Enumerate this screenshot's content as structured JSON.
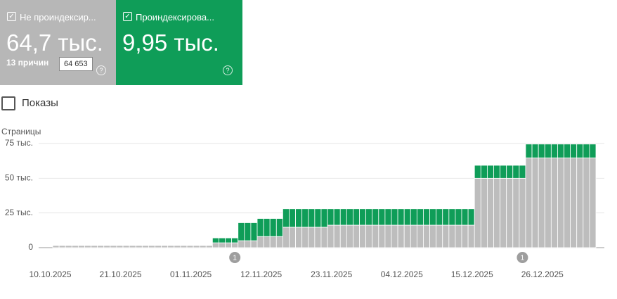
{
  "cards": [
    {
      "label": "Не проиндексир...",
      "value": "64,7 тыс.",
      "sub": "13 причин",
      "tooltip": "64 653"
    },
    {
      "label": "Проиндексирова...",
      "value": "9,95 тыс."
    }
  ],
  "checkbox_label": "Показы",
  "chart_data": {
    "type": "bar",
    "stacked": true,
    "y_label": "Страницы",
    "grid": true,
    "categories": [
      "10.10.2025",
      null,
      null,
      null,
      null,
      null,
      null,
      null,
      null,
      null,
      null,
      "21.10.2025",
      null,
      null,
      null,
      null,
      null,
      null,
      null,
      null,
      null,
      null,
      "01.11.2025",
      null,
      null,
      null,
      null,
      null,
      null,
      null,
      null,
      null,
      null,
      "12.11.2025",
      null,
      null,
      null,
      null,
      null,
      null,
      null,
      null,
      null,
      null,
      "23.11.2025",
      null,
      null,
      null,
      null,
      null,
      null,
      null,
      null,
      null,
      null,
      "04.12.2025",
      null,
      null,
      null,
      null,
      null,
      null,
      null,
      null,
      null,
      null,
      "15.12.2025",
      null,
      null,
      null,
      null,
      null,
      null,
      null,
      null,
      null,
      null,
      "26.12.2025",
      null,
      null,
      null,
      null,
      null,
      null,
      null
    ],
    "series": [
      {
        "color": "#bdbdbd",
        "values": [
          1500,
          1500,
          1500,
          1500,
          1500,
          1500,
          1500,
          1500,
          1500,
          1500,
          1500,
          1500,
          1500,
          1500,
          1500,
          1500,
          1500,
          1500,
          1500,
          1500,
          1500,
          1500,
          1500,
          1500,
          1500,
          3500,
          3500,
          3500,
          3500,
          5000,
          5000,
          5000,
          8000,
          8000,
          8000,
          8000,
          14700,
          14700,
          14700,
          14700,
          14700,
          14700,
          14700,
          16200,
          16200,
          16200,
          16200,
          16200,
          16200,
          16200,
          16200,
          16200,
          16200,
          16200,
          16200,
          16200,
          16200,
          16200,
          16200,
          16200,
          16200,
          16200,
          16200,
          16200,
          16200,
          16200,
          50000,
          50000,
          50000,
          50000,
          50000,
          50000,
          50000,
          50000,
          64653,
          64653,
          64653,
          64653,
          64653,
          64653,
          64653,
          64653,
          64653,
          64653,
          64653
        ]
      },
      {
        "color": "#0f9d58",
        "values": [
          0,
          0,
          0,
          0,
          0,
          0,
          0,
          0,
          0,
          0,
          0,
          0,
          0,
          0,
          0,
          0,
          0,
          0,
          0,
          0,
          0,
          0,
          0,
          0,
          0,
          3500,
          3500,
          3500,
          3500,
          13000,
          13000,
          13000,
          13000,
          13000,
          13000,
          13000,
          13300,
          13300,
          13300,
          13300,
          13300,
          13300,
          13300,
          11800,
          11800,
          11800,
          11800,
          11800,
          11800,
          11800,
          11800,
          11800,
          11800,
          11800,
          11800,
          11800,
          11800,
          11800,
          11800,
          11800,
          11800,
          11800,
          11800,
          11800,
          11800,
          11800,
          9300,
          9300,
          9300,
          9300,
          9300,
          9300,
          9300,
          9300,
          9950,
          9950,
          9950,
          9950,
          9950,
          9950,
          9950,
          9950,
          9950,
          9950,
          9950
        ]
      }
    ],
    "ylim": [
      0,
      75000
    ],
    "yticks": [
      0,
      {
        "value": 25000,
        "label": "25 тыс."
      },
      {
        "value": 50000,
        "label": "50 тыс."
      },
      {
        "value": 75000,
        "label": "75 тыс."
      }
    ],
    "annotations": [
      {
        "at": 28,
        "label": "1"
      },
      {
        "at": 73,
        "label": "1"
      }
    ]
  }
}
